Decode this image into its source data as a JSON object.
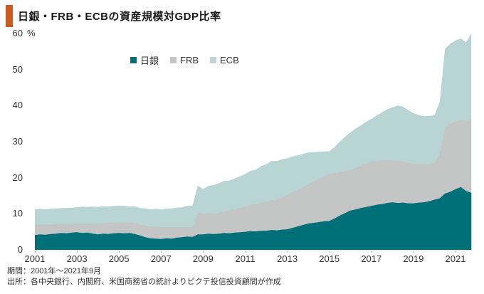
{
  "title": "日銀・FRB・ECBの資産規模対GDP比率",
  "accent_color": "#C75B22",
  "footer": {
    "line1": "期間：2001年～2021年9月",
    "line2": "出所：各中央銀行、内閣府、米国商務省の統計よりピクテ投信投資顧問が作成"
  },
  "chart_data": {
    "type": "area",
    "stacked": true,
    "title": "日銀・FRB・ECBの資産規模対GDP比率",
    "x_start": 2001.0,
    "x_step": 0.25,
    "xlim": [
      2001.0,
      2021.75
    ],
    "ylim": [
      0,
      60
    ],
    "y_unit": "%",
    "grid": false,
    "legend_position": "top-center",
    "x_ticks": [
      "2001",
      "2003",
      "2005",
      "2007",
      "2009",
      "2011",
      "2013",
      "2015",
      "2017",
      "2019",
      "2021"
    ],
    "y_ticks": [
      0,
      10,
      20,
      30,
      40,
      50,
      60
    ],
    "series": [
      {
        "name": "日銀",
        "color": "#007078",
        "values": [
          4.1,
          4.3,
          4.2,
          4.4,
          4.5,
          4.7,
          4.6,
          4.8,
          4.9,
          4.7,
          4.8,
          4.5,
          4.3,
          4.5,
          4.4,
          4.6,
          4.7,
          4.6,
          4.7,
          4.4,
          4.0,
          3.5,
          3.2,
          3.1,
          3.0,
          3.2,
          3.1,
          3.4,
          3.5,
          3.7,
          3.6,
          4.3,
          4.3,
          4.5,
          4.4,
          4.5,
          4.7,
          4.6,
          4.8,
          4.9,
          5.0,
          5.2,
          5.1,
          5.3,
          5.3,
          5.5,
          5.4,
          5.6,
          5.7,
          6.1,
          6.5,
          6.9,
          7.3,
          7.5,
          7.7,
          7.9,
          8.0,
          8.7,
          9.5,
          10.2,
          10.9,
          11.2,
          11.6,
          11.9,
          12.2,
          12.5,
          12.7,
          13.0,
          13.2,
          13.0,
          13.1,
          12.9,
          12.9,
          13.1,
          13.2,
          13.5,
          13.9,
          14.3,
          15.6,
          16.1,
          16.8,
          17.4,
          16.3,
          15.8
        ]
      },
      {
        "name": "FRB",
        "color": "#C4C5C5",
        "values": [
          2.8,
          2.7,
          2.8,
          2.6,
          2.7,
          2.5,
          2.6,
          2.4,
          2.4,
          2.6,
          2.5,
          2.7,
          3.0,
          2.9,
          3.1,
          3.0,
          3.0,
          3.0,
          2.9,
          3.1,
          3.0,
          3.2,
          3.3,
          3.4,
          3.3,
          3.1,
          3.2,
          2.9,
          2.8,
          2.6,
          2.7,
          6.0,
          5.6,
          5.7,
          5.6,
          5.8,
          5.9,
          6.2,
          6.4,
          6.7,
          7.0,
          7.4,
          7.6,
          7.8,
          7.9,
          8.3,
          8.5,
          9.0,
          9.5,
          9.9,
          10.1,
          10.5,
          10.9,
          11.5,
          12.0,
          12.5,
          13.0,
          12.5,
          12.1,
          11.6,
          11.2,
          11.5,
          11.7,
          12.0,
          12.3,
          12.1,
          12.2,
          11.8,
          11.5,
          11.7,
          11.4,
          11.2,
          11.0,
          10.7,
          10.6,
          10.3,
          10.2,
          12.2,
          18.3,
          18.8,
          18.8,
          18.6,
          19.5,
          20.5
        ]
      },
      {
        "name": "ECB",
        "color": "#B8D4D4",
        "values": [
          4.3,
          4.4,
          4.2,
          4.4,
          4.3,
          4.4,
          4.4,
          4.5,
          4.5,
          4.7,
          4.6,
          4.8,
          4.6,
          4.7,
          4.5,
          4.6,
          4.5,
          4.6,
          4.4,
          4.6,
          4.6,
          4.8,
          4.7,
          4.9,
          4.9,
          5.1,
          5.2,
          5.4,
          5.5,
          5.9,
          6.0,
          7.5,
          6.9,
          7.5,
          8.0,
          8.2,
          8.5,
          8.4,
          8.6,
          8.8,
          9.0,
          9.3,
          9.5,
          10.1,
          10.5,
          10.8,
          10.7,
          10.5,
          10.2,
          9.9,
          9.6,
          9.2,
          8.8,
          8.1,
          7.5,
          6.9,
          6.3,
          7.3,
          8.4,
          9.5,
          10.5,
          10.9,
          11.2,
          11.6,
          11.8,
          12.6,
          13.2,
          14.1,
          14.8,
          15.3,
          15.2,
          14.6,
          14.0,
          13.5,
          13.2,
          13.3,
          13.2,
          14.5,
          21.8,
          22.2,
          22.4,
          22.6,
          21.7,
          23.7
        ]
      }
    ]
  }
}
